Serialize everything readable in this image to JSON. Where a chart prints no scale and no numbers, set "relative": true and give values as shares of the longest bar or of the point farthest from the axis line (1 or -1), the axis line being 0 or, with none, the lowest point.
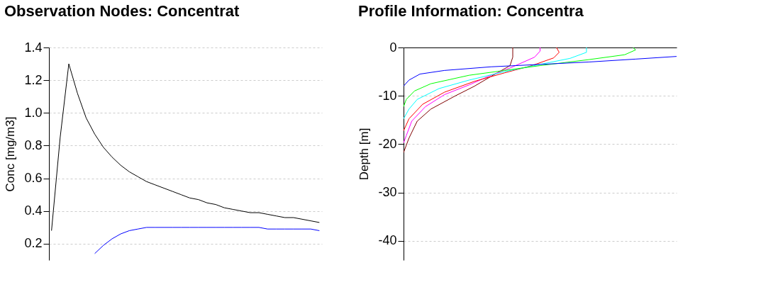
{
  "chart_data": [
    {
      "type": "line",
      "title": "Observation Nodes: Concentrat",
      "ylabel": "Conc [mg/m3]",
      "ylim": [
        0.1,
        1.4
      ],
      "categories": [
        null,
        null,
        null,
        null,
        null,
        null,
        null,
        null,
        null,
        null,
        null,
        null,
        null,
        null,
        null,
        null,
        null,
        null,
        null,
        null,
        null,
        null,
        null,
        null,
        null,
        null,
        null,
        null,
        null,
        null,
        null,
        null
      ],
      "yticks": [
        0.2,
        0.4,
        0.6,
        0.8,
        {
          "value": 1,
          "label": "1.0"
        },
        1.2,
        1.4
      ],
      "grid": "y",
      "tick_labels": "y",
      "line_style": "solid",
      "series": [
        {
          "color": "#000000",
          "values": [
            0.28,
            0.85,
            1.3,
            1.12,
            0.97,
            0.87,
            0.79,
            0.73,
            0.68,
            0.64,
            0.61,
            0.58,
            0.56,
            0.54,
            0.52,
            0.5,
            0.48,
            0.47,
            0.45,
            0.44,
            0.42,
            0.41,
            0.4,
            0.39,
            0.39,
            0.38,
            0.37,
            0.36,
            0.36,
            0.35,
            0.34,
            0.33
          ]
        },
        {
          "color": "#0000ff",
          "values": [
            null,
            null,
            null,
            null,
            null,
            0.14,
            0.19,
            0.23,
            0.26,
            0.28,
            0.29,
            0.3,
            0.3,
            0.3,
            0.3,
            0.3,
            0.3,
            0.3,
            0.3,
            0.3,
            0.3,
            0.3,
            0.3,
            0.3,
            0.3,
            0.29,
            0.29,
            0.29,
            0.29,
            0.29,
            0.29,
            0.28
          ]
        }
      ]
    },
    {
      "type": "line",
      "title": "Profile Information:  Concentra",
      "ylabel": "Depth [m]",
      "orientation": "horizontal",
      "relative": true,
      "ylim": [
        -44,
        0
      ],
      "yticks": [
        0,
        -10,
        -20,
        -30,
        -40
      ],
      "grid": "y",
      "tick_labels": "y",
      "line_style": "solid",
      "series": [
        {
          "color": "#800000",
          "x": [
            0,
            -2,
            -3.75,
            -6,
            -8,
            -10,
            -12.75,
            -15.25,
            -18.75,
            -21.75
          ],
          "values": [
            0.4,
            0.4,
            0.39,
            0.32,
            0.26,
            0.19,
            0.1,
            0.05,
            0.02,
            0.0
          ]
        },
        {
          "color": "#ff00ff",
          "x": [
            0,
            -0.75,
            -2,
            -4.25,
            -5.75,
            -7.75,
            -9.75,
            -12.25,
            -15.25,
            -18.25,
            -19.75
          ],
          "values": [
            0.5,
            0.5,
            0.48,
            0.39,
            0.32,
            0.24,
            0.15,
            0.08,
            0.03,
            0.01,
            0
          ]
        },
        {
          "color": "#ff0000",
          "x": [
            0,
            -1,
            -2.15,
            -3.75,
            -5.25,
            -7,
            -9.25,
            -11.75,
            -14.75,
            -17.25
          ],
          "values": [
            0.56,
            0.57,
            0.55,
            0.47,
            0.37,
            0.26,
            0.15,
            0.07,
            0.02,
            0.0
          ]
        },
        {
          "color": "#00ffff",
          "x": [
            0,
            -1,
            -2.25,
            -3.5,
            -5,
            -6.75,
            -8.5,
            -10.75,
            -12.75,
            -14.75
          ],
          "values": [
            0.67,
            0.67,
            0.61,
            0.5,
            0.37,
            0.24,
            0.13,
            0.05,
            0.02,
            0
          ]
        },
        {
          "color": "#00ff00",
          "x": [
            0,
            -0.5,
            -1.5,
            -2.5,
            -3.75,
            -4.75,
            -5.75,
            -7.5,
            -9,
            -10.75,
            -12.25
          ],
          "values": [
            0.84,
            0.85,
            0.81,
            0.68,
            0.5,
            0.37,
            0.24,
            0.1,
            0.04,
            0.01,
            0
          ]
        },
        {
          "color": "#0000ff",
          "x": [
            -1.85,
            -2.4,
            -3,
            -3.5,
            -4,
            -4.75,
            -5.5,
            -6.75,
            -8
          ],
          "values": [
            1,
            0.85,
            0.68,
            0.5,
            0.32,
            0.15,
            0.06,
            0.02,
            0.0
          ]
        }
      ]
    }
  ]
}
